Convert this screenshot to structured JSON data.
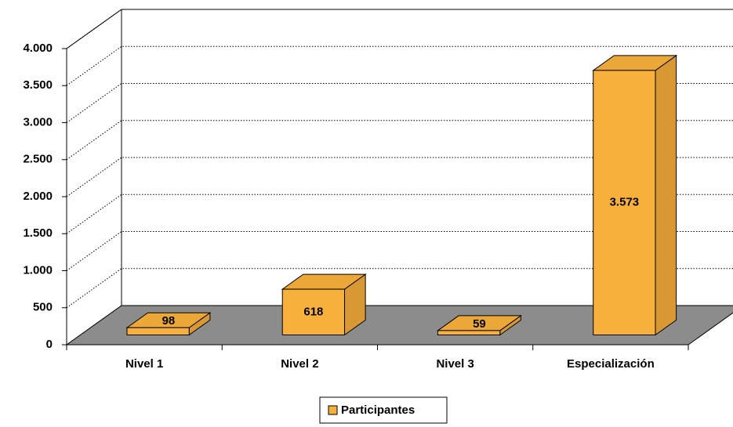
{
  "chart_data": {
    "type": "bar3d",
    "categories": [
      "Nivel 1",
      "Nivel 2",
      "Nivel 3",
      "Especialización"
    ],
    "series": [
      {
        "name": "Participantes",
        "color": "#f8b03c",
        "values": [
          98,
          618,
          59,
          3573
        ],
        "value_labels": [
          "98",
          "618",
          "59",
          "3.573"
        ]
      }
    ],
    "ylim": [
      0,
      4000
    ],
    "yticks": [
      0,
      500,
      {
        "value": 1000,
        "label": "1.000"
      },
      {
        "value": 1500,
        "label": "1.500"
      },
      {
        "value": 2000,
        "label": "2.000"
      },
      {
        "value": 2500,
        "label": "2.500"
      },
      {
        "value": 3000,
        "label": "3.000"
      },
      {
        "value": 3500,
        "label": "3.500"
      },
      {
        "value": 4000,
        "label": "4.000"
      }
    ],
    "grid": true,
    "legend": "bottom"
  }
}
